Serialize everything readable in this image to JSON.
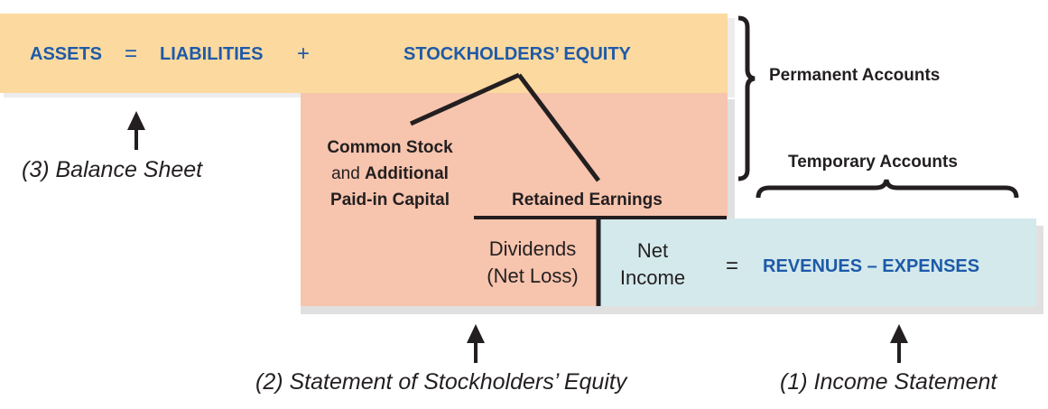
{
  "equation": {
    "assets": "ASSETS",
    "equals": "=",
    "liabilities": "LIABILITIES",
    "plus": "+",
    "equity": "STOCKHOLDERS’ EQUITY"
  },
  "equity_parts": {
    "common_stock_line1": "Common Stock",
    "common_stock_line2_prefix": "and ",
    "common_stock_line2_bold": "Additional",
    "common_stock_line3": "Paid-in Capital",
    "retained_earnings": "Retained Earnings",
    "dividends_line1": "Dividends",
    "dividends_line2": "(Net Loss)",
    "net_income_line1": "Net",
    "net_income_line2": "Income",
    "equals": "=",
    "revenues_expenses": "REVENUES – EXPENSES"
  },
  "brackets": {
    "permanent": "Permanent Accounts",
    "temporary": "Temporary Accounts"
  },
  "statements": {
    "balance_sheet": "(3) Balance Sheet",
    "stockholders_equity": "(2) Statement of Stockholders’ Equity",
    "income_statement": "(1) Income Statement"
  },
  "colors": {
    "assets_band": "#fbd99f",
    "equity_block": "#f7c4ae",
    "income_block": "#d4e9ec",
    "accent_blue": "#1e5aa8",
    "ink": "#231f20"
  }
}
